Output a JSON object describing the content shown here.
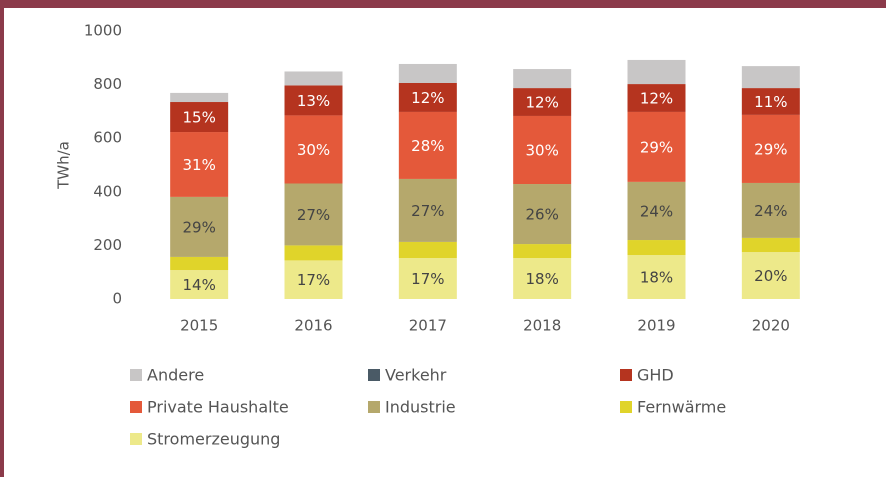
{
  "chart_data": {
    "type": "stacked_bar",
    "y_label": "TWh/a",
    "categories": [
      "2015",
      "2016",
      "2017",
      "2018",
      "2019",
      "2020"
    ],
    "ylim": [
      0,
      1000
    ],
    "yticks": [
      0,
      200,
      400,
      600,
      800,
      1000
    ],
    "grid": false,
    "series": [
      {
        "name": "Andere",
        "color": "#c8c6c6",
        "values": [
          34,
          52,
          71,
          71,
          90,
          82
        ]
      },
      {
        "name": "Verkehr",
        "color": "#4a5a66",
        "values": [
          0,
          0,
          0,
          0,
          0,
          0
        ]
      },
      {
        "name": "GHD",
        "color": "#b5341f",
        "values": [
          112,
          112,
          108,
          104,
          104,
          100
        ],
        "share_labels": [
          "15%",
          "13%",
          "12%",
          "12%",
          "12%",
          "11%"
        ]
      },
      {
        "name": "Private Haushalte",
        "color": "#e4593a",
        "values": [
          242,
          254,
          250,
          254,
          261,
          254
        ],
        "share_labels": [
          "31%",
          "30%",
          "28%",
          "30%",
          "29%",
          "29%"
        ]
      },
      {
        "name": "Industrie",
        "color": "#b5a86c",
        "values": [
          224,
          231,
          235,
          224,
          217,
          205
        ],
        "share_labels": [
          "29%",
          "27%",
          "27%",
          "26%",
          "24%",
          "24%"
        ]
      },
      {
        "name": "Fernwärme",
        "color": "#e0d42a",
        "values": [
          49,
          56,
          60,
          52,
          56,
          53
        ]
      },
      {
        "name": "Stromerzeugung",
        "color": "#ede98a",
        "values": [
          108,
          144,
          153,
          153,
          164,
          175
        ],
        "share_labels": [
          "14%",
          "17%",
          "17%",
          "18%",
          "18%",
          "20%"
        ]
      }
    ]
  }
}
